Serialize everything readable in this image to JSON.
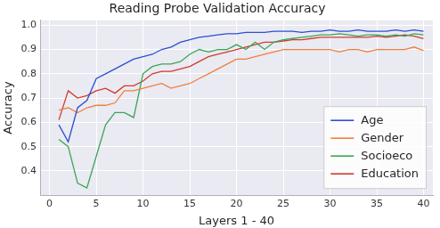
{
  "chart_data": {
    "type": "line",
    "title": "Reading Probe Validation Accuracy",
    "x_label": "Layers 1 - 40",
    "y_label": "Accuracy",
    "x": [
      1,
      2,
      3,
      4,
      5,
      6,
      7,
      8,
      9,
      10,
      11,
      12,
      13,
      14,
      15,
      16,
      17,
      18,
      19,
      20,
      21,
      22,
      23,
      24,
      25,
      26,
      27,
      28,
      29,
      30,
      31,
      32,
      33,
      34,
      35,
      36,
      37,
      38,
      39,
      40
    ],
    "series": [
      {
        "name": "Age",
        "color": "#2b4fd1",
        "values": [
          0.59,
          0.52,
          0.66,
          0.69,
          0.78,
          0.8,
          0.82,
          0.84,
          0.86,
          0.87,
          0.88,
          0.9,
          0.91,
          0.93,
          0.94,
          0.95,
          0.955,
          0.96,
          0.965,
          0.965,
          0.97,
          0.97,
          0.97,
          0.975,
          0.975,
          0.975,
          0.97,
          0.975,
          0.975,
          0.98,
          0.975,
          0.975,
          0.98,
          0.975,
          0.975,
          0.975,
          0.98,
          0.975,
          0.98,
          0.975
        ]
      },
      {
        "name": "Gender",
        "color": "#f07f3c",
        "values": [
          0.65,
          0.66,
          0.64,
          0.66,
          0.67,
          0.67,
          0.68,
          0.73,
          0.73,
          0.74,
          0.75,
          0.76,
          0.74,
          0.75,
          0.76,
          0.78,
          0.8,
          0.82,
          0.84,
          0.86,
          0.86,
          0.87,
          0.88,
          0.89,
          0.9,
          0.9,
          0.9,
          0.9,
          0.9,
          0.9,
          0.89,
          0.9,
          0.9,
          0.89,
          0.9,
          0.9,
          0.9,
          0.9,
          0.91,
          0.895
        ]
      },
      {
        "name": "Socioeco",
        "color": "#3aa655",
        "values": [
          0.53,
          0.5,
          0.35,
          0.33,
          0.46,
          0.59,
          0.64,
          0.64,
          0.62,
          0.8,
          0.83,
          0.84,
          0.84,
          0.85,
          0.88,
          0.9,
          0.89,
          0.9,
          0.9,
          0.92,
          0.9,
          0.93,
          0.9,
          0.93,
          0.94,
          0.945,
          0.95,
          0.955,
          0.96,
          0.96,
          0.965,
          0.96,
          0.955,
          0.96,
          0.96,
          0.955,
          0.96,
          0.955,
          0.965,
          0.96
        ]
      },
      {
        "name": "Education",
        "color": "#d13b2f",
        "values": [
          0.61,
          0.73,
          0.7,
          0.71,
          0.73,
          0.74,
          0.72,
          0.75,
          0.75,
          0.77,
          0.8,
          0.81,
          0.81,
          0.82,
          0.83,
          0.85,
          0.87,
          0.88,
          0.89,
          0.9,
          0.91,
          0.92,
          0.93,
          0.93,
          0.935,
          0.94,
          0.94,
          0.945,
          0.95,
          0.95,
          0.95,
          0.95,
          0.95,
          0.95,
          0.955,
          0.95,
          0.955,
          0.96,
          0.955,
          0.945
        ]
      }
    ],
    "xlim": [
      -1,
      41
    ],
    "xticks": [
      0,
      5,
      10,
      15,
      20,
      25,
      30,
      35,
      40
    ],
    "ylim": [
      0.3,
      1.02
    ],
    "yticks": [
      0.4,
      0.5,
      0.6,
      0.7,
      0.8,
      0.9,
      {
        "value": 1,
        "label": "1.0"
      }
    ],
    "grid": true,
    "legend": "lower right"
  }
}
